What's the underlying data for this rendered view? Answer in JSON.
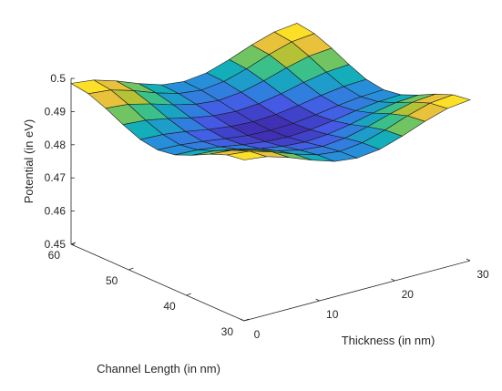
{
  "chart_data": {
    "type": "surface",
    "title": "",
    "xlabel": "Thickness (in nm)",
    "ylabel": "Channel Length (in nm)",
    "zlabel": "Potential (in eV)",
    "xlim": [
      0,
      30
    ],
    "ylim": [
      30,
      60
    ],
    "zlim": [
      0.45,
      0.5
    ],
    "x_ticks": [
      "0",
      "10",
      "20",
      "30"
    ],
    "y_ticks": [
      "30",
      "40",
      "50",
      "60"
    ],
    "z_ticks": [
      "0.45",
      "0.46",
      "0.47",
      "0.48",
      "0.49",
      "0.5"
    ],
    "colormap": "parula",
    "grid": false,
    "surface": {
      "x": [
        0,
        3,
        6,
        9,
        12,
        15,
        18,
        21,
        24,
        27,
        30
      ],
      "y": [
        30,
        33,
        36,
        39,
        42,
        45,
        48,
        51,
        54,
        57,
        60
      ],
      "z": [
        [
          0.4985,
          0.4977,
          0.4956,
          0.493,
          0.4908,
          0.49,
          0.4908,
          0.493,
          0.4956,
          0.4977,
          0.4985
        ],
        [
          0.4977,
          0.497,
          0.495,
          0.4925,
          0.4905,
          0.4897,
          0.4905,
          0.4925,
          0.495,
          0.497,
          0.4977
        ],
        [
          0.4956,
          0.495,
          0.4933,
          0.4912,
          0.4896,
          0.4889,
          0.4896,
          0.4912,
          0.4933,
          0.495,
          0.4956
        ],
        [
          0.493,
          0.4925,
          0.4912,
          0.4896,
          0.4884,
          0.4879,
          0.4884,
          0.4896,
          0.4912,
          0.4925,
          0.493
        ],
        [
          0.4908,
          0.4905,
          0.4896,
          0.4884,
          0.4875,
          0.4871,
          0.4875,
          0.4884,
          0.4896,
          0.4905,
          0.4908
        ],
        [
          0.49,
          0.4897,
          0.4889,
          0.4879,
          0.4871,
          0.4868,
          0.4871,
          0.4879,
          0.4889,
          0.4897,
          0.49
        ],
        [
          0.4908,
          0.4905,
          0.4896,
          0.4884,
          0.4875,
          0.4871,
          0.4875,
          0.4884,
          0.4896,
          0.4905,
          0.4908
        ],
        [
          0.493,
          0.4925,
          0.4912,
          0.4896,
          0.4884,
          0.4879,
          0.4884,
          0.4896,
          0.4912,
          0.4925,
          0.493
        ],
        [
          0.4956,
          0.495,
          0.4933,
          0.4912,
          0.4896,
          0.4889,
          0.4896,
          0.4912,
          0.4933,
          0.495,
          0.4956
        ],
        [
          0.4977,
          0.497,
          0.495,
          0.4925,
          0.4905,
          0.4897,
          0.4905,
          0.4925,
          0.495,
          0.497,
          0.4977
        ],
        [
          0.4985,
          0.4977,
          0.4956,
          0.493,
          0.4908,
          0.49,
          0.4908,
          0.493,
          0.4956,
          0.4977,
          0.4985
        ]
      ]
    }
  }
}
